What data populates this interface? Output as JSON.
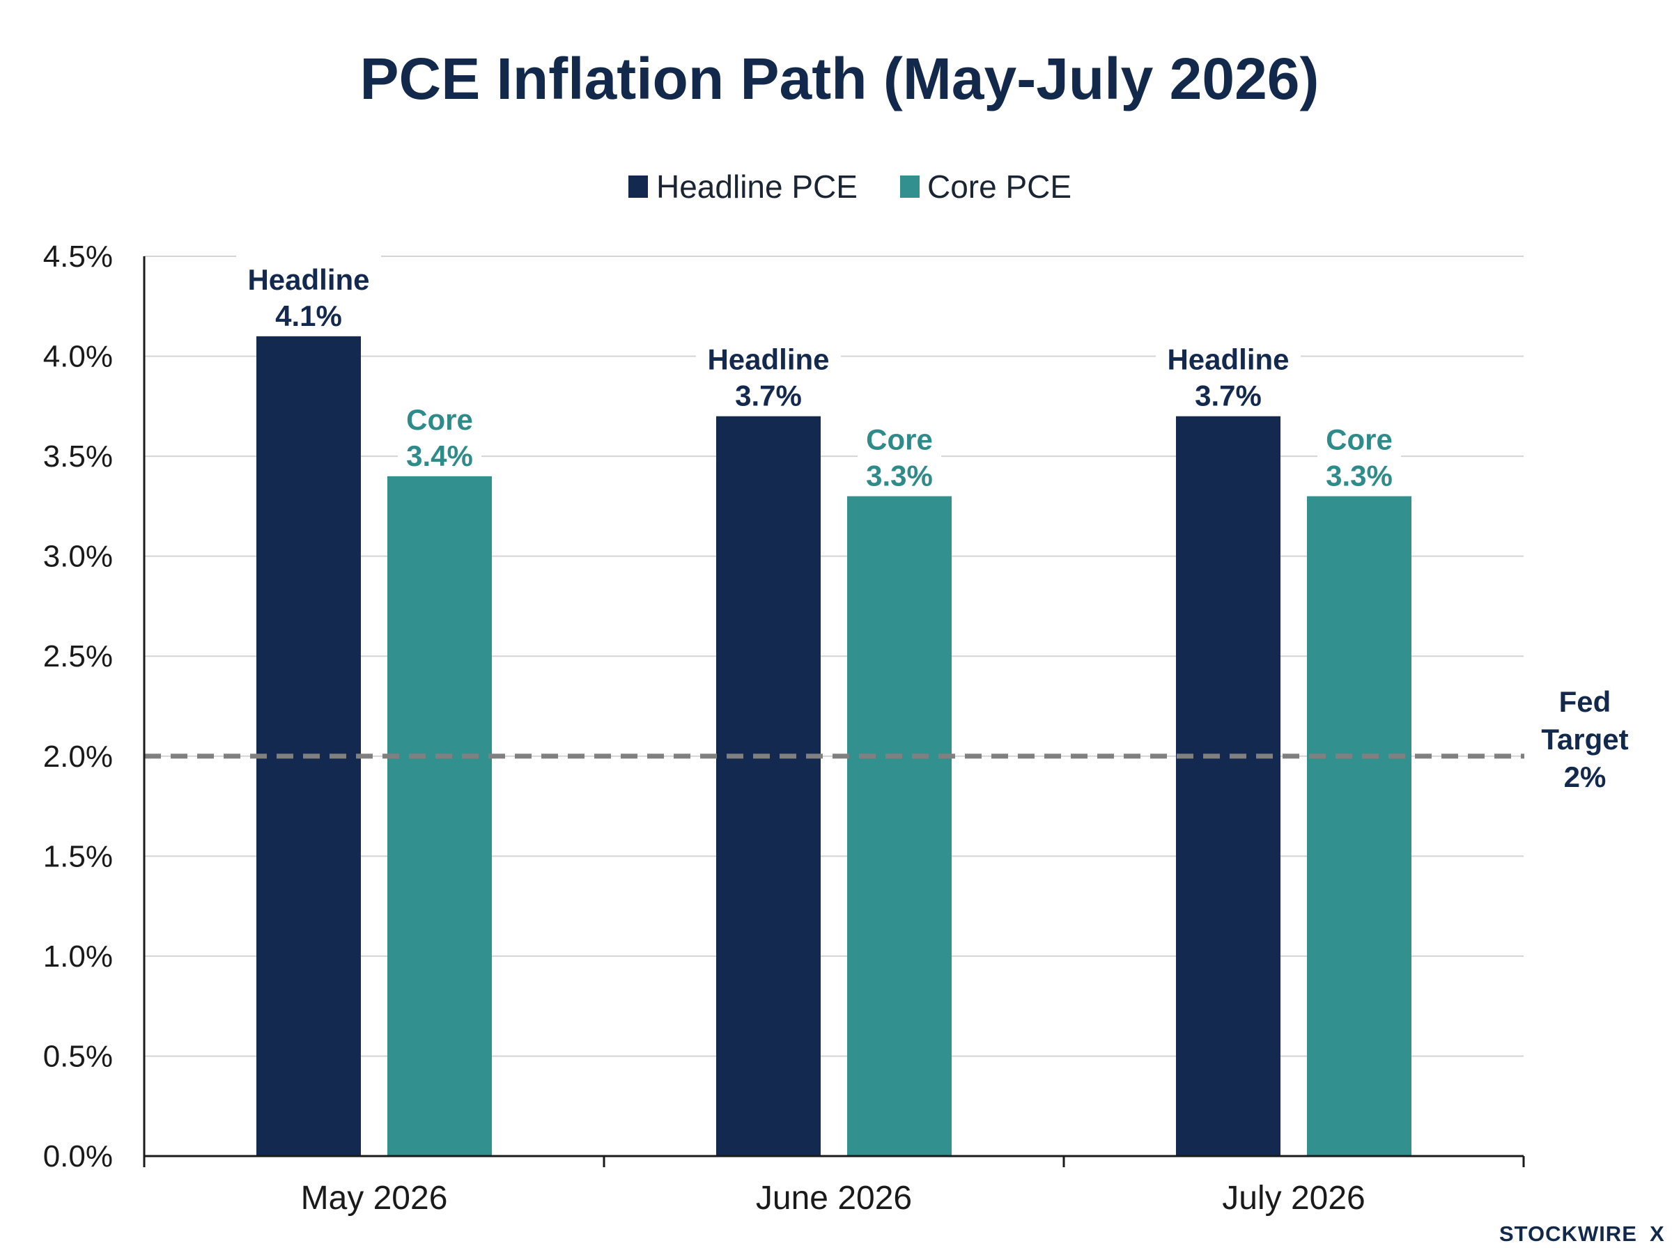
{
  "chart_data": {
    "type": "bar",
    "title": "PCE Inflation Path (May-July 2026)",
    "categories": [
      "May 2026",
      "June 2026",
      "July 2026"
    ],
    "series": [
      {
        "name": "Headline PCE",
        "short": "Headline",
        "color": "#13294f",
        "values": [
          4.1,
          3.7,
          3.7
        ]
      },
      {
        "name": "Core PCE",
        "short": "Core",
        "color": "#32908f",
        "label_color": "#2e8b8a",
        "values": [
          3.4,
          3.3,
          3.3
        ]
      }
    ],
    "ylim": [
      0,
      4.5
    ],
    "yticks": [
      "0.0%",
      "0.5%",
      "1.0%",
      "1.5%",
      "2.0%",
      "2.5%",
      "3.0%",
      "3.5%",
      "4.0%",
      "4.5%"
    ],
    "grid": true,
    "legend_position": "top-center",
    "reference_line": {
      "value": 2.0,
      "label_lines": [
        "Fed",
        "Target",
        "2%"
      ],
      "color": "#808080"
    }
  },
  "brand": {
    "name": "STOCKWIRE",
    "mark": "X"
  }
}
